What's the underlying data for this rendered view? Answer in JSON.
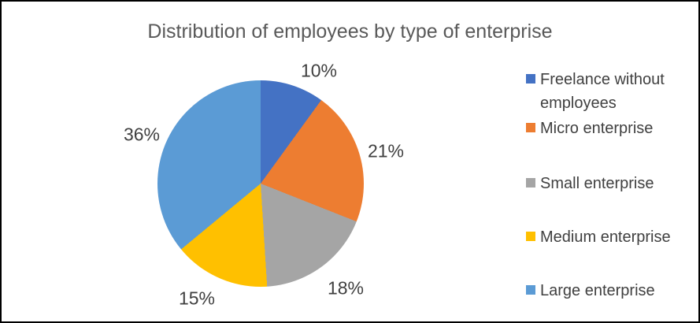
{
  "chart_data": {
    "type": "pie",
    "title": "Distribution of employees by type of enterprise",
    "legend_position": "right",
    "start_angle_deg": 0,
    "direction": "clockwise",
    "background_color": "#ffffff",
    "border_color": "#000000",
    "title_color": "#595959",
    "label_color": "#404040",
    "slices": [
      {
        "label": "Freelance without employees",
        "value": 10,
        "pct_label": "10%",
        "color": "#4472C4"
      },
      {
        "label": "Micro enterprise",
        "value": 21,
        "pct_label": "21%",
        "color": "#ED7D31"
      },
      {
        "label": "Small enterprise",
        "value": 18,
        "pct_label": "18%",
        "color": "#A5A5A5"
      },
      {
        "label": "Medium enterprise",
        "value": 15,
        "pct_label": "15%",
        "color": "#FFC000"
      },
      {
        "label": "Large enterprise",
        "value": 36,
        "pct_label": "36%",
        "color": "#5B9BD5"
      }
    ]
  }
}
